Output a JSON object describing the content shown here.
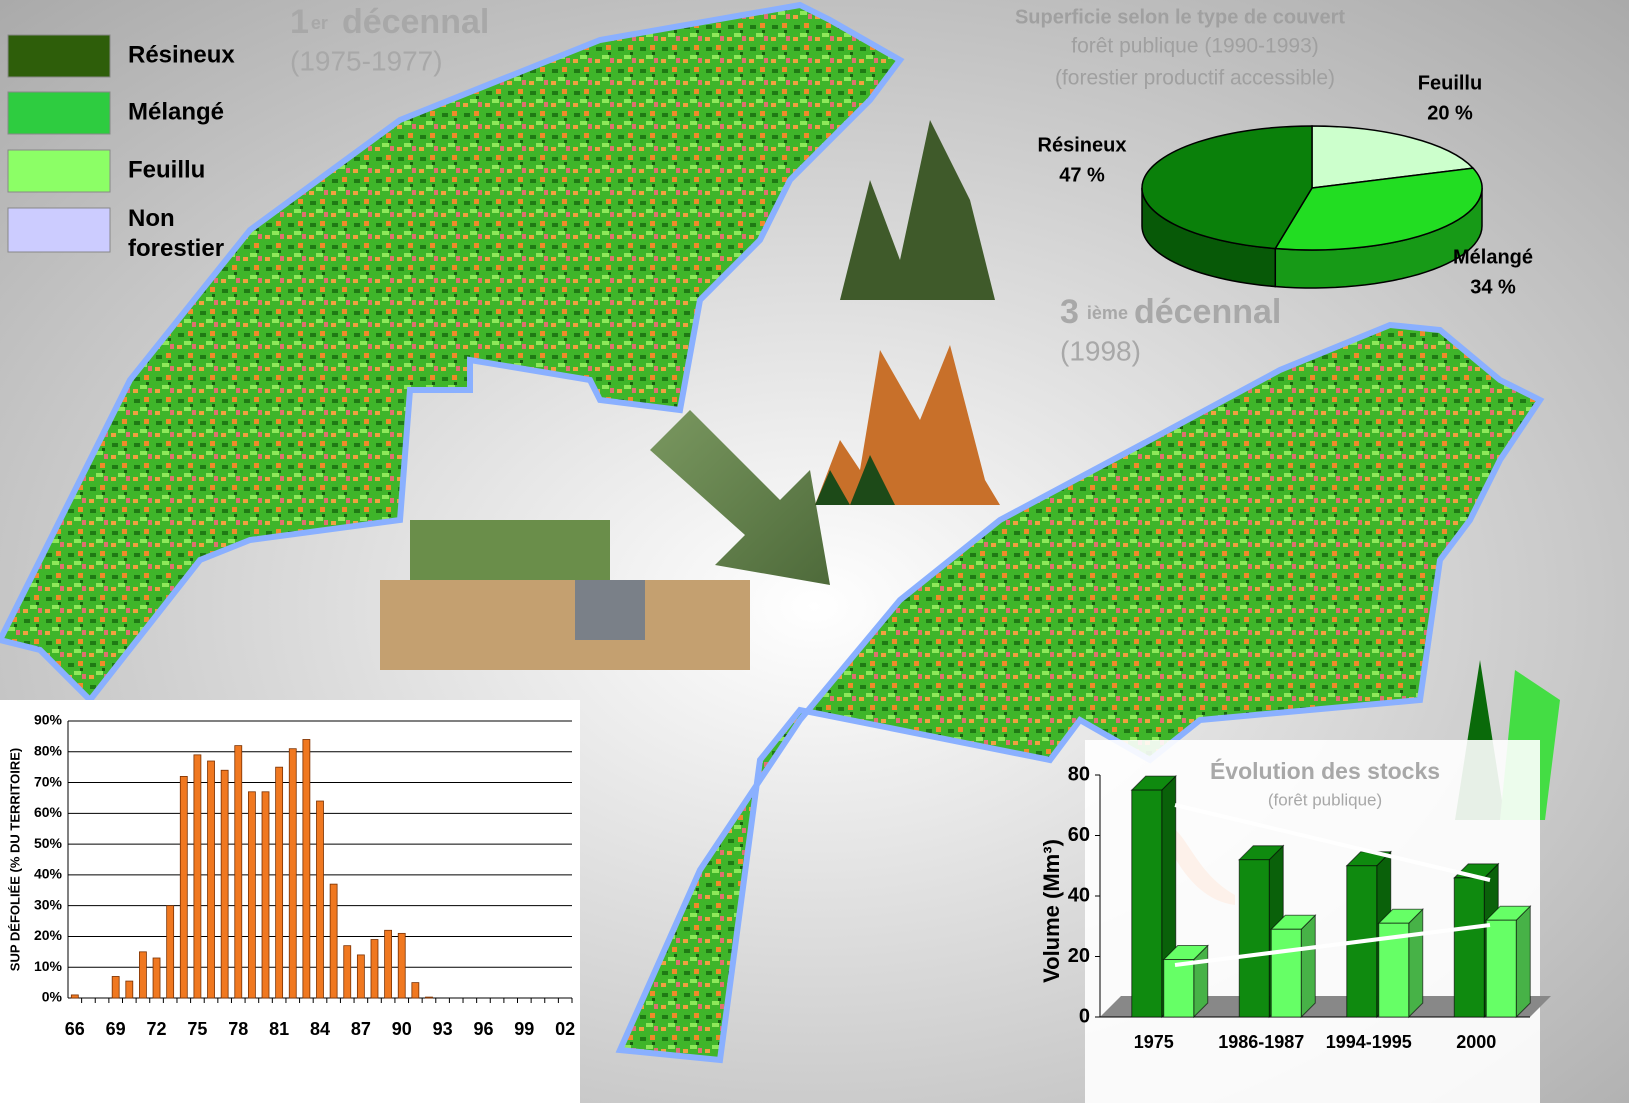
{
  "legend": {
    "items": [
      {
        "label": "Résineux",
        "color": "#2e5e0a"
      },
      {
        "label": "Mélangé",
        "color": "#2ecc40"
      },
      {
        "label": "Feuillu",
        "color": "#8cff66"
      },
      {
        "label": "Non forestier",
        "color": "#ccccff"
      }
    ]
  },
  "maps": [
    {
      "number": "1",
      "suffix": "er",
      "title": "décennal",
      "period": "(1975-1977)"
    },
    {
      "number": "3",
      "suffix": "ième",
      "title": "décennal",
      "period": "(1998)"
    }
  ],
  "chart_data": [
    {
      "type": "pie",
      "title": "Superficie selon le type de couvert",
      "subtitle": [
        "forêt publique (1990-1993)",
        "(forestier productif accessible)"
      ],
      "categories": [
        "Feuillu",
        "Mélangé",
        "Résineux"
      ],
      "values": [
        20,
        34,
        47
      ],
      "value_labels": [
        "20 %",
        "34 %",
        "47 %"
      ],
      "colors": [
        "#ccffcc",
        "#22dd22",
        "#0a800a"
      ]
    },
    {
      "type": "bar",
      "y_label": "SUP DÉFOLIÉE (% DU TERRITOIRE)",
      "categories": [
        "66",
        null,
        null,
        "69",
        null,
        null,
        "72",
        null,
        null,
        "75",
        null,
        null,
        "78",
        null,
        null,
        "81",
        null,
        null,
        "84",
        null,
        null,
        "87",
        null,
        null,
        "90",
        null,
        null,
        "93",
        null,
        null,
        "96",
        null,
        null,
        "99",
        null,
        null,
        "02"
      ],
      "values": [
        1,
        0,
        0,
        7,
        5.5,
        15,
        13,
        30,
        72,
        79,
        77,
        74,
        82,
        67,
        67,
        75,
        81,
        84,
        64,
        37,
        17,
        14,
        19,
        22,
        21,
        5,
        0.3,
        0,
        0,
        0,
        0,
        0,
        0,
        0,
        0,
        0,
        0
      ],
      "color": "#f07820",
      "grid": true,
      "ylim": [
        0,
        90
      ],
      "yticks": [
        {
          "value": 0,
          "label": "0%"
        },
        {
          "value": 10,
          "label": "10%"
        },
        {
          "value": 20,
          "label": "20%"
        },
        {
          "value": 30,
          "label": "30%"
        },
        {
          "value": 40,
          "label": "40%"
        },
        {
          "value": 50,
          "label": "50%"
        },
        {
          "value": 60,
          "label": "60%"
        },
        {
          "value": 70,
          "label": "70%"
        },
        {
          "value": 80,
          "label": "80%"
        },
        {
          "value": 90,
          "label": "90%"
        }
      ]
    },
    {
      "type": "bar3d",
      "title": "Évolution des stocks",
      "subtitle": "(forêt publique)",
      "y_label": "Volume (Mm³)",
      "categories": [
        "1975",
        "1986-1987",
        "1994-1995",
        "2000"
      ],
      "series": [
        {
          "color": "#0f8a0f",
          "values": [
            75,
            52,
            50,
            46
          ]
        },
        {
          "color": "#66ff66",
          "values": [
            19,
            29,
            31,
            32
          ]
        }
      ],
      "ylim": [
        0,
        80
      ],
      "yticks": [
        0,
        20,
        40,
        60,
        80
      ]
    }
  ]
}
